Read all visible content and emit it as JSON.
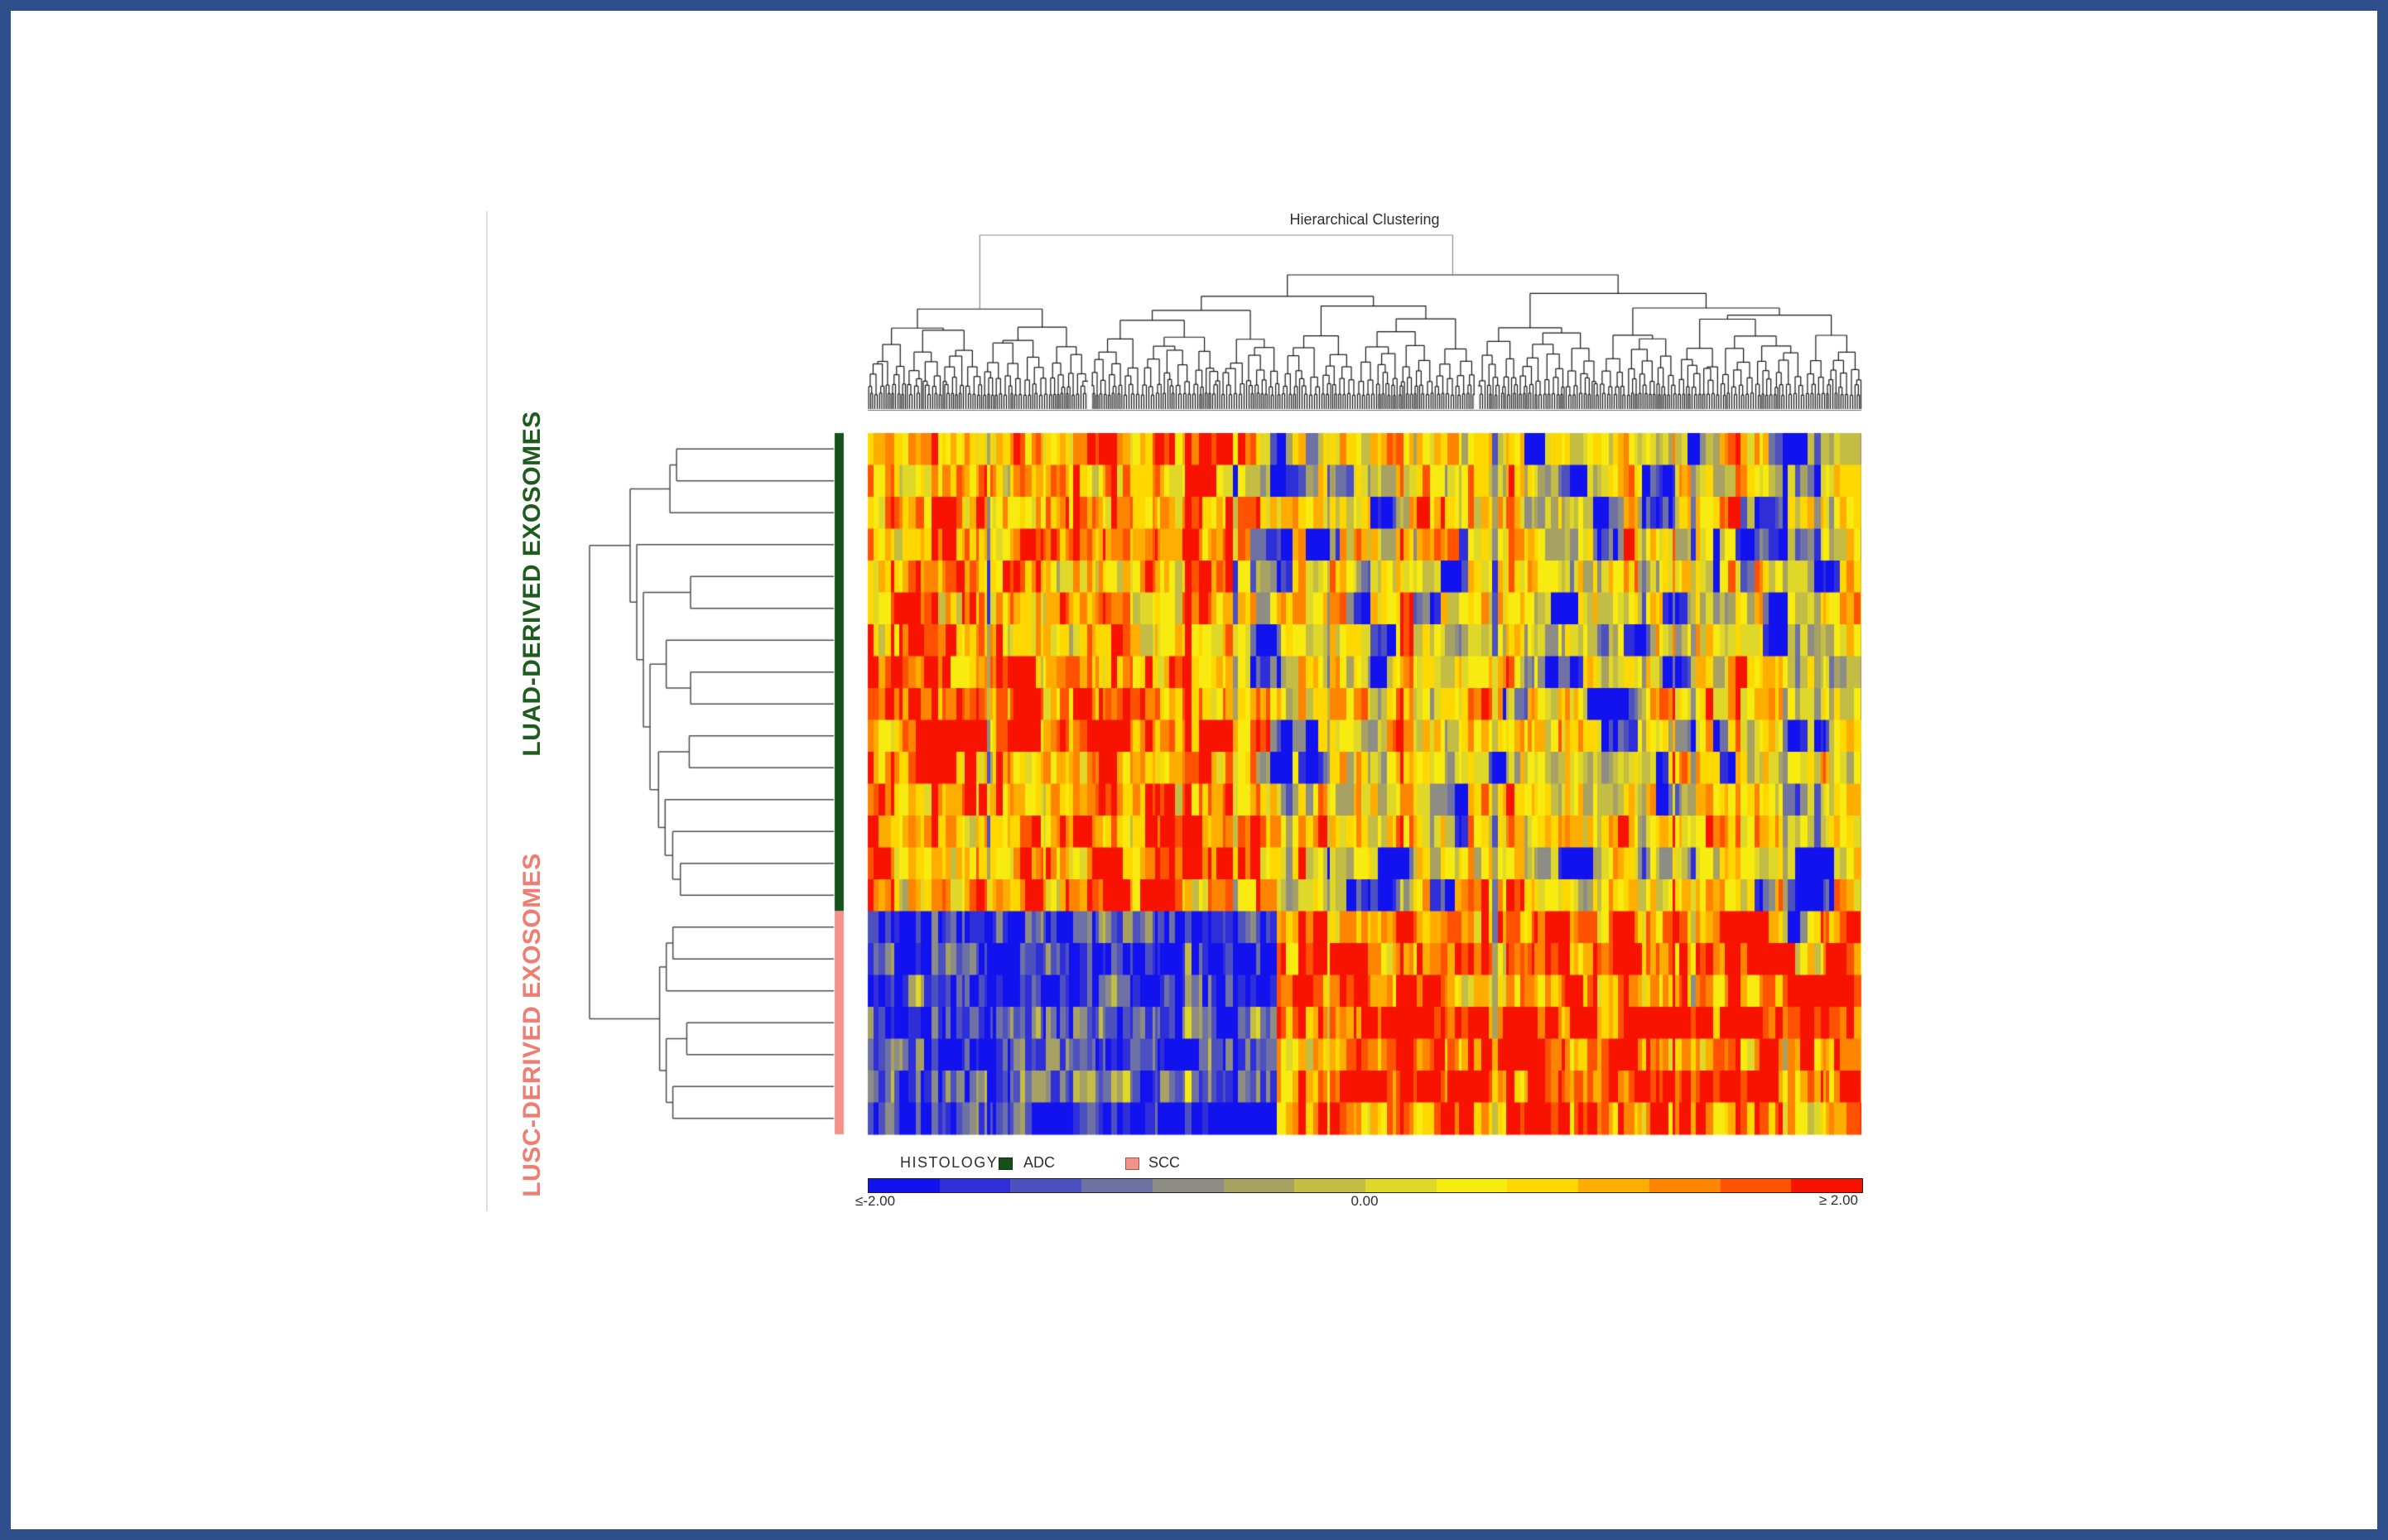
{
  "frame": {
    "border_color": "#2f4f8c",
    "background": "#ffffff"
  },
  "title": "Hierarchical Clustering",
  "row_labels": {
    "top": {
      "text": "LUAD-DERIVED EXOSOMES",
      "color": "#1d5c1d"
    },
    "bottom": {
      "text": "LUSC-DERIVED EXOSOMES",
      "color": "#f07c72"
    }
  },
  "legend": {
    "title": "HISTOLOGY",
    "items": [
      {
        "label": "ADC",
        "color": "#17501a",
        "border": "#0c2d0e"
      },
      {
        "label": "SCC",
        "color": "#f3928b",
        "border": "#a8524c"
      }
    ]
  },
  "colorbar": {
    "min_label": "≤-2.00",
    "mid_label": "0.00",
    "max_label": "≥ 2.00",
    "border_color": "#222222",
    "stops": [
      "#1212ee",
      "#2f2fd9",
      "#4d50bf",
      "#6e71a4",
      "#8d8d86",
      "#a7a263",
      "#c3bd45",
      "#dfd829",
      "#f7eb10",
      "#ffd800",
      "#ffae00",
      "#ff8400",
      "#ff5200",
      "#f81300"
    ]
  },
  "chart_data": {
    "type": "heatmap",
    "title": "Hierarchical Clustering",
    "rows": 22,
    "row_groups": [
      {
        "name": "ADC",
        "label": "LUAD-DERIVED EXOSOMES",
        "rows": 15,
        "color": "#17501a"
      },
      {
        "name": "SCC",
        "label": "LUSC-DERIVED EXOSOMES",
        "rows": 7,
        "color": "#f3928b"
      }
    ],
    "columns_estimated": 200,
    "value_scale": {
      "min": -2,
      "mid": 0,
      "max": 2
    },
    "palette": [
      "#1212ee",
      "#2f2fd9",
      "#4d50bf",
      "#6e71a4",
      "#8d8d86",
      "#a7a263",
      "#c3bd45",
      "#dfd829",
      "#f7eb10",
      "#ffd800",
      "#ffae00",
      "#ff8400",
      "#ff5200",
      "#f81300"
    ],
    "pattern": {
      "seed": 42,
      "col_split_frac": 0.41,
      "groups": {
        "ADC": {
          "left_bias": 0.95,
          "right_bias": 0.3
        },
        "SCC": {
          "left_bias": -1.45,
          "right_bias": 1.4
        }
      },
      "noise": 0.8,
      "persistence": 0.55,
      "column_effect": 0.45,
      "blue_blobs": 55,
      "red_blobs": 25,
      "lusc_red_blobs": 18
    },
    "column_dendrogram": {
      "top_split_frac": 0.225,
      "second_split_frac": 0.495,
      "line_color": "#141414",
      "bracket_color": "#8a8a8a",
      "baseline_color": "#6f6f6f"
    },
    "row_dendrogram": {
      "line_color": "#4d4d4d",
      "luad_tree": [
        [
          [
            0,
            1
          ],
          2
        ],
        [
          3,
          [
            [
              4,
              5
            ],
            [
              [
                6,
                [
                  7,
                  8
                ]
              ],
              [
                [
                  9,
                  10
                ],
                [
                  11,
                  [
                    12,
                    [
                      13,
                      14
                    ]
                  ]
                ]
              ]
            ]
          ]
        ]
      ],
      "lusc_tree": [
        [
          [
            0,
            1
          ],
          2
        ],
        [
          [
            3,
            4
          ],
          [
            5,
            6
          ]
        ]
      ]
    }
  }
}
